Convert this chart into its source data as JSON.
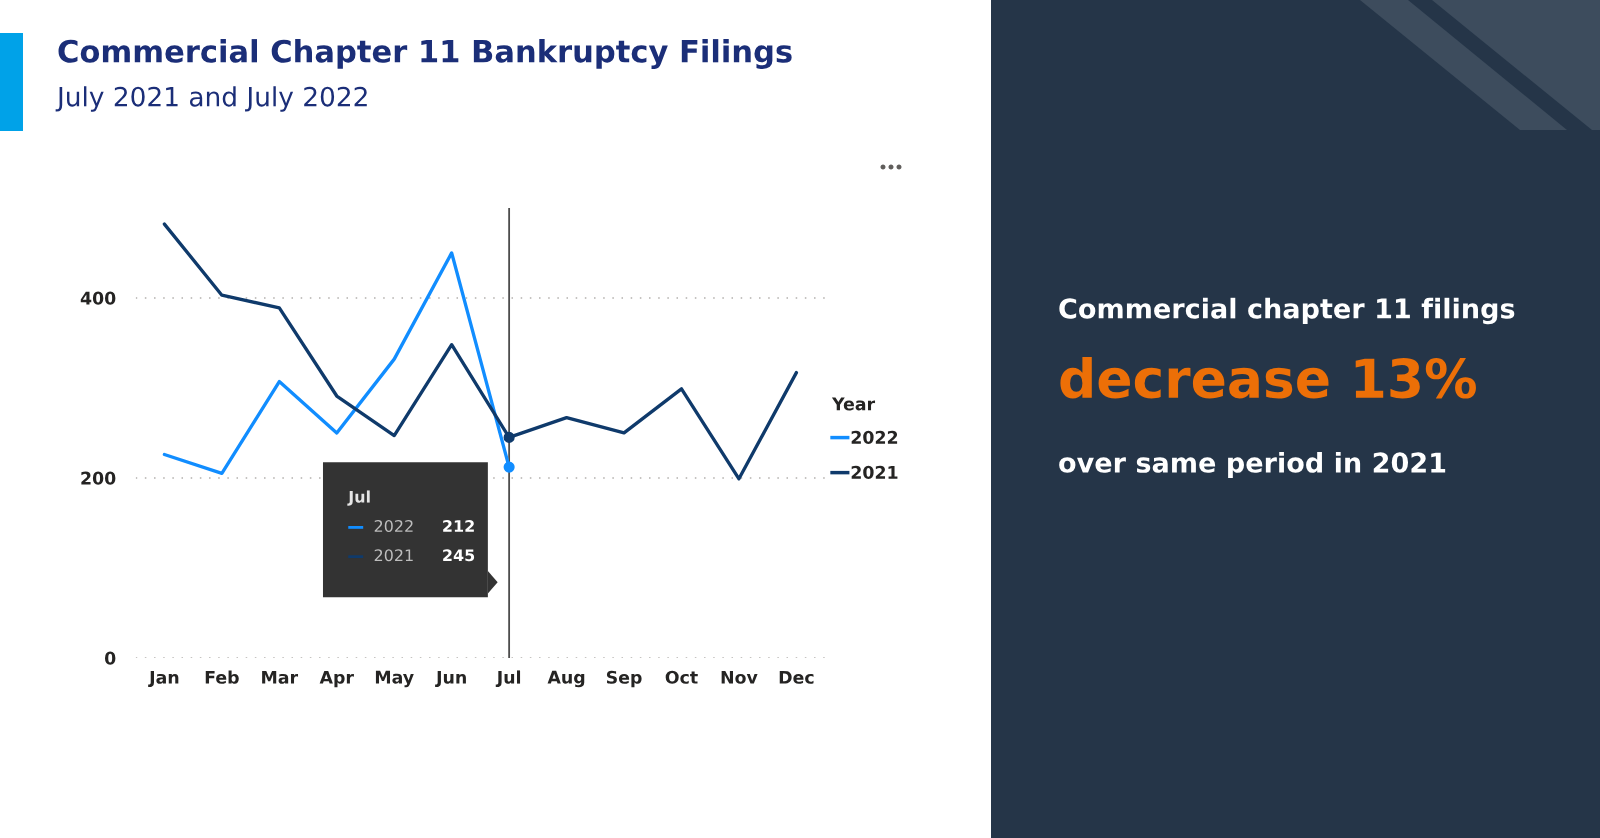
{
  "chart_data": [
    {
      "type": "line",
      "title": "Commercial Chapter 11 Bankruptcy Filings",
      "subtitle": "July 2021 and July 2022",
      "categories": [
        "Jan",
        "Feb",
        "Mar",
        "Apr",
        "May",
        "Jun",
        "Jul",
        "Aug",
        "Sep",
        "Oct",
        "Nov",
        "Dec"
      ],
      "series": [
        {
          "name": "2022",
          "color": "#118dff",
          "values": [
            226,
            205,
            307,
            250,
            332,
            450,
            212,
            null,
            null,
            null,
            null,
            null
          ]
        },
        {
          "name": "2021",
          "color": "#0f3a6b",
          "values": [
            482,
            403,
            389,
            291,
            247,
            348,
            245,
            267,
            250,
            299,
            199,
            317
          ]
        }
      ],
      "ylim": [
        0,
        500
      ],
      "yticks": [
        0,
        200,
        400
      ],
      "grid": "y",
      "legend": "right",
      "legend_title": "Year",
      "line_style": "solid",
      "ref_lines": [
        {
          "axis": "x",
          "value": "Jul",
          "color": "#4d4d4d"
        }
      ],
      "annotations": [
        "Jul",
        "2022",
        "212",
        "2021",
        "245"
      ]
    },
    {
      "type": "other",
      "annotations": [
        "Commercial chapter 11 filings",
        "decrease 13%",
        "over same period in 2021"
      ]
    }
  ]
}
